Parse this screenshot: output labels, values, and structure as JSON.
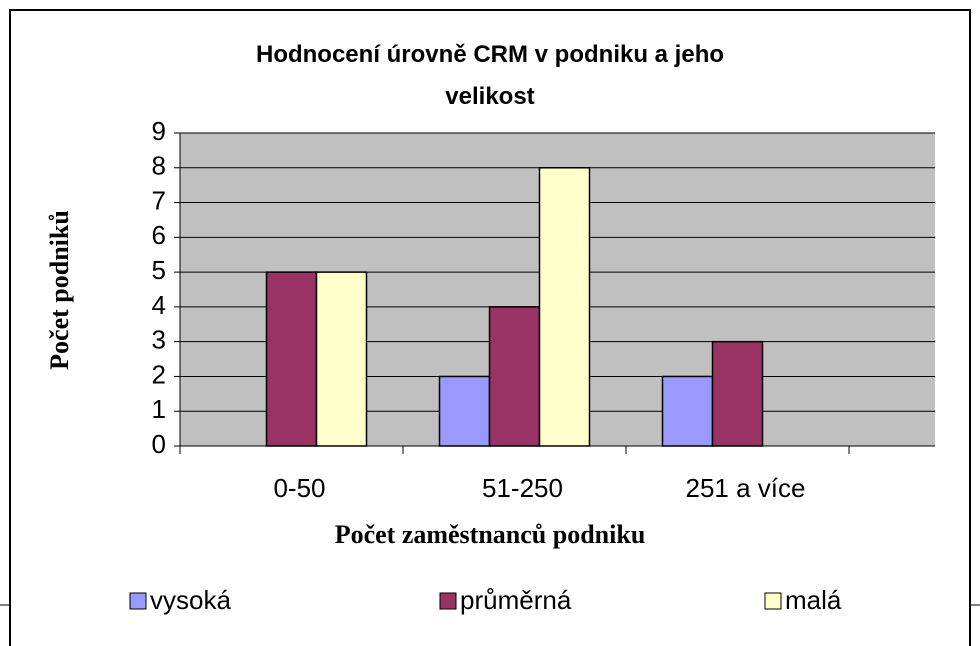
{
  "chart_data": {
    "type": "bar",
    "title": "Hodnocení úrovně CRM v podniku a jeho velikost",
    "x_label": "Počet zaměstnanců podniku",
    "y_label": "Počet podniků",
    "categories": [
      "0-50",
      "51-250",
      "251 a více"
    ],
    "series": [
      {
        "name": "vysoká",
        "color": "#9999ff",
        "values": [
          0,
          2,
          2
        ]
      },
      {
        "name": "průměrná",
        "color": "#993366",
        "values": [
          5,
          4,
          3
        ]
      },
      {
        "name": "malá",
        "color": "#ffffcc",
        "values": [
          5,
          8,
          0
        ]
      }
    ],
    "ylim": [
      0,
      9
    ],
    "yticks": [
      0,
      1,
      2,
      3,
      4,
      5,
      6,
      7,
      8,
      9
    ],
    "grid": true,
    "legend": "bottom"
  }
}
